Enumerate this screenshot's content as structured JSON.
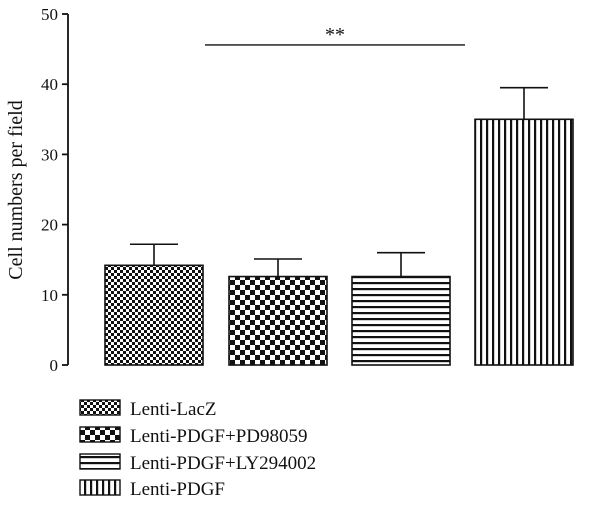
{
  "chart_data": {
    "type": "bar",
    "ylabel": "Cell numbers per field",
    "xlabel": "",
    "ylim": [
      0,
      50
    ],
    "yticks": [
      0,
      10,
      20,
      30,
      40,
      50
    ],
    "grid": false,
    "legend_placement": "bottom-left",
    "categories": [
      "Lenti-LacZ",
      "Lenti-PDGF+PD98059",
      "Lenti-PDGF+LY294002",
      "Lenti-PDGF"
    ],
    "values": [
      14.2,
      12.6,
      12.6,
      35.0
    ],
    "errors": [
      3.0,
      2.5,
      3.4,
      4.5
    ],
    "patterns": [
      "small-checker",
      "large-checker",
      "horizontal-lines",
      "vertical-lines"
    ],
    "annotations": [
      {
        "text": "**",
        "from_category": "Lenti-PDGF+PD98059",
        "to_category": "Lenti-PDGF+LY294002",
        "y": 45.6
      }
    ],
    "colors": {
      "ink": "#111111",
      "background": "#ffffff"
    }
  }
}
